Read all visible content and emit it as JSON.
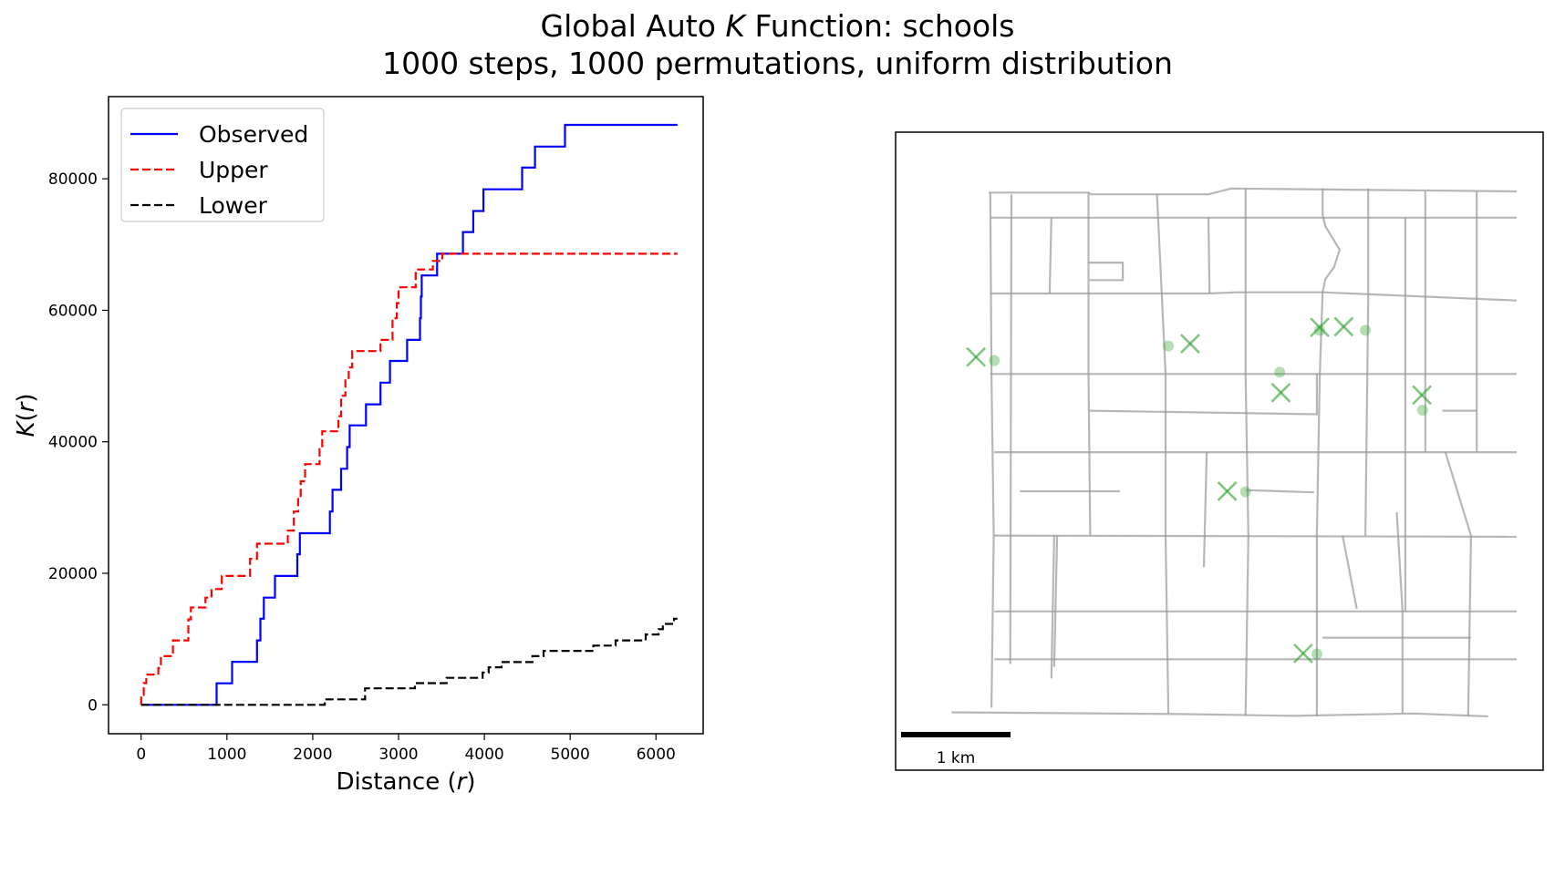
{
  "title": {
    "line1_prefix": "Global Auto ",
    "line1_k": "K",
    "line1_suffix": " Function: schools",
    "line2": "1000 steps, 1000 permutations, uniform distribution"
  },
  "chart_data": [
    {
      "type": "line",
      "xlabel_prefix": "Distance (",
      "xlabel_var": "r",
      "xlabel_suffix": ")",
      "ylabel_k": "K",
      "ylabel_open": "(",
      "ylabel_var": "r",
      "ylabel_close": ")",
      "xlim": [
        -380,
        6550
      ],
      "ylim": [
        -4400,
        92500
      ],
      "xticks": [
        0,
        1000,
        2000,
        3000,
        4000,
        5000,
        6000
      ],
      "yticks": [
        0,
        20000,
        40000,
        60000,
        80000
      ],
      "grid": false,
      "legend_position": "top-left",
      "series": [
        {
          "name": "Observed",
          "color": "#0000ff",
          "dash": "solid",
          "points": [
            [
              0,
              0
            ],
            [
              880,
              0
            ],
            [
              880,
              3270
            ],
            [
              1060,
              3270
            ],
            [
              1060,
              6540
            ],
            [
              1350,
              6540
            ],
            [
              1350,
              9800
            ],
            [
              1390,
              9800
            ],
            [
              1390,
              13100
            ],
            [
              1430,
              13100
            ],
            [
              1430,
              16300
            ],
            [
              1560,
              16300
            ],
            [
              1560,
              19600
            ],
            [
              1820,
              19600
            ],
            [
              1820,
              22900
            ],
            [
              1850,
              22900
            ],
            [
              1850,
              26100
            ],
            [
              2200,
              26100
            ],
            [
              2200,
              29400
            ],
            [
              2230,
              29400
            ],
            [
              2230,
              32700
            ],
            [
              2330,
              32700
            ],
            [
              2330,
              35900
            ],
            [
              2400,
              35900
            ],
            [
              2400,
              39200
            ],
            [
              2430,
              39200
            ],
            [
              2430,
              42500
            ],
            [
              2620,
              42500
            ],
            [
              2620,
              45700
            ],
            [
              2790,
              45700
            ],
            [
              2790,
              49000
            ],
            [
              2900,
              49000
            ],
            [
              2900,
              52300
            ],
            [
              3100,
              52300
            ],
            [
              3100,
              55500
            ],
            [
              3250,
              55500
            ],
            [
              3250,
              58800
            ],
            [
              3260,
              58800
            ],
            [
              3260,
              62100
            ],
            [
              3270,
              62100
            ],
            [
              3270,
              65300
            ],
            [
              3450,
              65300
            ],
            [
              3450,
              68600
            ],
            [
              3750,
              68600
            ],
            [
              3750,
              71900
            ],
            [
              3870,
              71900
            ],
            [
              3870,
              75100
            ],
            [
              3990,
              75100
            ],
            [
              3990,
              78400
            ],
            [
              4440,
              78400
            ],
            [
              4440,
              81700
            ],
            [
              4590,
              81700
            ],
            [
              4590,
              84900
            ],
            [
              4940,
              84900
            ],
            [
              4940,
              88200
            ],
            [
              6250,
              88200
            ]
          ]
        },
        {
          "name": "Upper",
          "color": "#ff0000",
          "dash": "dashed",
          "points": [
            [
              0,
              0
            ],
            [
              0,
              1500
            ],
            [
              30,
              1500
            ],
            [
              30,
              3300
            ],
            [
              60,
              3300
            ],
            [
              60,
              4600
            ],
            [
              200,
              4600
            ],
            [
              200,
              5600
            ],
            [
              230,
              5600
            ],
            [
              230,
              7400
            ],
            [
              370,
              7400
            ],
            [
              370,
              9800
            ],
            [
              550,
              9800
            ],
            [
              550,
              13000
            ],
            [
              580,
              13000
            ],
            [
              580,
              14800
            ],
            [
              750,
              14800
            ],
            [
              750,
              16300
            ],
            [
              820,
              16300
            ],
            [
              820,
              17600
            ],
            [
              940,
              17600
            ],
            [
              940,
              19600
            ],
            [
              1270,
              19600
            ],
            [
              1270,
              22200
            ],
            [
              1350,
              22200
            ],
            [
              1350,
              24500
            ],
            [
              1710,
              24500
            ],
            [
              1710,
              26500
            ],
            [
              1780,
              26500
            ],
            [
              1780,
              29400
            ],
            [
              1830,
              29400
            ],
            [
              1830,
              31500
            ],
            [
              1860,
              31500
            ],
            [
              1860,
              34000
            ],
            [
              1910,
              34000
            ],
            [
              1910,
              36600
            ],
            [
              2080,
              36600
            ],
            [
              2080,
              38900
            ],
            [
              2110,
              38900
            ],
            [
              2110,
              41600
            ],
            [
              2300,
              41600
            ],
            [
              2300,
              43900
            ],
            [
              2330,
              43900
            ],
            [
              2330,
              47000
            ],
            [
              2380,
              47000
            ],
            [
              2380,
              49700
            ],
            [
              2420,
              49700
            ],
            [
              2420,
              51300
            ],
            [
              2460,
              51300
            ],
            [
              2460,
              53800
            ],
            [
              2790,
              53800
            ],
            [
              2790,
              55500
            ],
            [
              2930,
              55500
            ],
            [
              2930,
              58800
            ],
            [
              2980,
              58800
            ],
            [
              2980,
              61100
            ],
            [
              3000,
              61100
            ],
            [
              3000,
              63500
            ],
            [
              3200,
              63500
            ],
            [
              3200,
              66200
            ],
            [
              3400,
              66200
            ],
            [
              3400,
              67500
            ],
            [
              3510,
              67500
            ],
            [
              3510,
              68600
            ],
            [
              6250,
              68600
            ]
          ]
        },
        {
          "name": "Lower",
          "color": "#000000",
          "dash": "dashed",
          "points": [
            [
              0,
              0
            ],
            [
              2140,
              0
            ],
            [
              2140,
              820
            ],
            [
              2610,
              820
            ],
            [
              2610,
              2500
            ],
            [
              3190,
              2500
            ],
            [
              3190,
              3300
            ],
            [
              3560,
              3300
            ],
            [
              3560,
              4100
            ],
            [
              3980,
              4100
            ],
            [
              3980,
              4900
            ],
            [
              4050,
              4900
            ],
            [
              4050,
              5700
            ],
            [
              4200,
              5700
            ],
            [
              4200,
              6500
            ],
            [
              4560,
              6500
            ],
            [
              4560,
              7400
            ],
            [
              4690,
              7400
            ],
            [
              4690,
              8200
            ],
            [
              5270,
              8200
            ],
            [
              5270,
              9000
            ],
            [
              5530,
              9000
            ],
            [
              5530,
              9800
            ],
            [
              5880,
              9800
            ],
            [
              5880,
              10700
            ],
            [
              6030,
              10700
            ],
            [
              6030,
              11500
            ],
            [
              6080,
              11500
            ],
            [
              6080,
              12300
            ],
            [
              6210,
              12300
            ],
            [
              6210,
              13100
            ],
            [
              6250,
              13100
            ]
          ]
        }
      ]
    },
    {
      "type": "scatter",
      "scale_bar_label": "1 km",
      "xlim": [
        0,
        1000
      ],
      "ylim": [
        0,
        1000
      ],
      "street_color": "#999999",
      "street_opacity": 0.7,
      "network": [
        [
          [
            75,
            948
          ],
          [
            250,
            948
          ],
          [
            255,
            945
          ],
          [
            460,
            945
          ],
          [
            500,
            955
          ],
          [
            1000,
            950
          ]
        ],
        [
          [
            78,
            905
          ],
          [
            1000,
            905
          ]
        ],
        [
          [
            78,
            775
          ],
          [
            460,
            775
          ],
          [
            510,
            777
          ],
          [
            660,
            777
          ],
          [
            1000,
            763
          ]
        ],
        [
          [
            78,
            637
          ],
          [
            1000,
            637
          ]
        ],
        [
          [
            85,
            503
          ],
          [
            1000,
            503
          ]
        ],
        [
          [
            85,
            360
          ],
          [
            1000,
            358
          ]
        ],
        [
          [
            85,
            230
          ],
          [
            1000,
            230
          ]
        ],
        [
          [
            85,
            148
          ],
          [
            1000,
            148
          ]
        ],
        [
          [
            10,
            57
          ],
          [
            410,
            54
          ],
          [
            610,
            51
          ],
          [
            820,
            55
          ],
          [
            950,
            50
          ]
        ],
        [
          [
            78,
            948
          ],
          [
            80,
            637
          ],
          [
            84,
            360
          ],
          [
            80,
            65
          ]
        ],
        [
          [
            115,
            945
          ],
          [
            113,
            140
          ]
        ],
        [
          [
            185,
            905
          ],
          [
            182,
            775
          ]
        ],
        [
          [
            250,
            948
          ],
          [
            250,
            637
          ],
          [
            253,
            360
          ]
        ],
        [
          [
            250,
            828
          ],
          [
            310,
            828
          ],
          [
            310,
            798
          ],
          [
            252,
            798
          ]
        ],
        [
          [
            190,
            360
          ],
          [
            185,
            115
          ]
        ],
        [
          [
            370,
            945
          ],
          [
            385,
            637
          ],
          [
            385,
            360
          ],
          [
            390,
            55
          ]
        ],
        [
          [
            460,
            905
          ],
          [
            462,
            775
          ]
        ],
        [
          [
            525,
            955
          ],
          [
            525,
            637
          ],
          [
            530,
            360
          ],
          [
            525,
            51
          ]
        ],
        [
          [
            252,
            574
          ],
          [
            650,
            568
          ],
          [
            650,
            637
          ]
        ],
        [
          [
            457,
            503
          ],
          [
            452,
            306
          ]
        ],
        [
          [
            130,
            436
          ],
          [
            305,
            436
          ]
        ],
        [
          [
            525,
            438
          ],
          [
            645,
            434
          ]
        ],
        [
          [
            660,
            955
          ],
          [
            660,
            910
          ],
          [
            665,
            890
          ],
          [
            690,
            850
          ],
          [
            680,
            820
          ],
          [
            665,
            800
          ],
          [
            660,
            777
          ],
          [
            655,
            630
          ],
          [
            650,
            360
          ],
          [
            650,
            50
          ]
        ],
        [
          [
            740,
            955
          ],
          [
            740,
            763
          ],
          [
            735,
            360
          ]
        ],
        [
          [
            805,
            905
          ],
          [
            805,
            230
          ]
        ],
        [
          [
            790,
            400
          ],
          [
            800,
            230
          ],
          [
            800,
            55
          ]
        ],
        [
          [
            840,
            950
          ],
          [
            840,
            503
          ]
        ],
        [
          [
            930,
            950
          ],
          [
            930,
            503
          ]
        ],
        [
          [
            870,
            574
          ],
          [
            930,
            574
          ]
        ],
        [
          [
            875,
            503
          ],
          [
            920,
            360
          ],
          [
            915,
            50
          ]
        ],
        [
          [
            660,
            185
          ],
          [
            920,
            185
          ]
        ],
        [
          [
            695,
            360
          ],
          [
            720,
            234
          ]
        ],
        [
          [
            195,
            360
          ],
          [
            190,
            135
          ]
        ]
      ],
      "sites": [
        {
          "name": "school-1",
          "x": 85,
          "y": 660
        },
        {
          "name": "school-2",
          "x": 390,
          "y": 685
        },
        {
          "name": "school-3",
          "x": 585,
          "y": 640
        },
        {
          "name": "school-4",
          "x": 655,
          "y": 712
        },
        {
          "name": "school-5",
          "x": 735,
          "y": 712
        },
        {
          "name": "school-6",
          "x": 835,
          "y": 575
        },
        {
          "name": "school-7",
          "x": 525,
          "y": 435
        },
        {
          "name": "school-8",
          "x": 650,
          "y": 157
        }
      ],
      "snapped": [
        {
          "name": "school-1",
          "x": 53,
          "y": 666
        },
        {
          "name": "school-2",
          "x": 428,
          "y": 689
        },
        {
          "name": "school-3",
          "x": 587,
          "y": 605
        },
        {
          "name": "school-4",
          "x": 655,
          "y": 717
        },
        {
          "name": "school-5",
          "x": 697,
          "y": 718
        },
        {
          "name": "school-6",
          "x": 834,
          "y": 601
        },
        {
          "name": "school-7",
          "x": 493,
          "y": 436
        },
        {
          "name": "school-8",
          "x": 626,
          "y": 158
        }
      ],
      "site_color": "#2ca02c"
    }
  ]
}
